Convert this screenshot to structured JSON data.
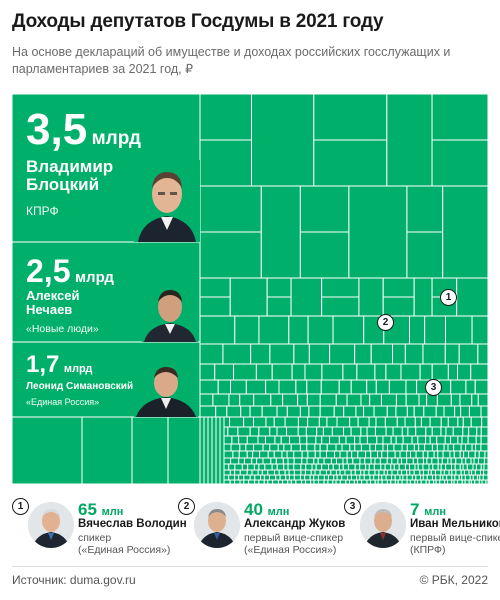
{
  "header": {
    "title": "Доходы депутатов Госдумы в 2021 году",
    "subtitle": "На основе деклараций об имуществе и доходах российских госслужащих и парламентариев за 2021 год, ₽"
  },
  "colors": {
    "accent": "#00b06a",
    "accent_text": "#00a862",
    "cell_border": "#ffffff"
  },
  "chart_data": {
    "type": "treemap",
    "unit": "₽",
    "leaders": [
      {
        "amount": "3,5",
        "unit": "млрд",
        "value": 3500000000,
        "name_line1": "Владимир",
        "name_line2": "Блоцкий",
        "party": "КПРФ"
      },
      {
        "amount": "2,5",
        "unit": "млрд",
        "value": 2500000000,
        "name_line1": "Алексей",
        "name_line2": "Нечаев",
        "party": "«Новые люди»"
      },
      {
        "amount": "1,7",
        "unit": "млрд",
        "value": 1700000000,
        "name_line1": "Леонид Симановский",
        "name_line2": "",
        "party": "«Единая Россия»"
      }
    ],
    "highlighted": [
      {
        "marker": "1",
        "amount": "65",
        "unit": "млн",
        "value": 65000000,
        "name": "Вячеслав Володин",
        "role_line1": "спикер",
        "role_line2": "(«Единая Россия»)"
      },
      {
        "marker": "2",
        "amount": "40",
        "unit": "млн",
        "value": 40000000,
        "name": "Александр Жуков",
        "role_line1": "первый вице-спикер",
        "role_line2": "(«Единая Россия»)"
      },
      {
        "marker": "3",
        "amount": "7",
        "unit": "млн",
        "value": 7000000,
        "name": "Иван Мельников",
        "role_line1": "первый вице-спикер",
        "role_line2": "(КПРФ)"
      }
    ]
  },
  "footer": {
    "source": "Источник: duma.gov.ru",
    "copyright": "©  РБК, 2022"
  }
}
